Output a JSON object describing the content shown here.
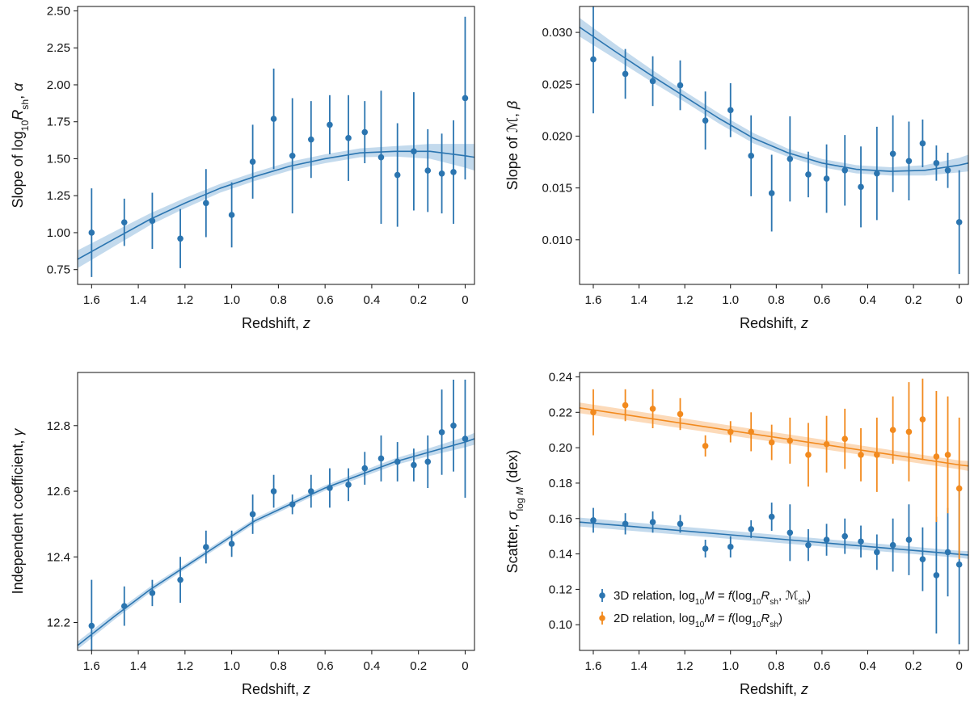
{
  "colors": {
    "blue": "#2b75b0",
    "blue_band": "#b9d3ea",
    "orange": "#f28a1e",
    "orange_band": "#fbd3ad",
    "axis": "#111111"
  },
  "chart_data": [
    {
      "type": "scatter",
      "panel": "top-left",
      "xlabel": "Redshift, z",
      "ylabel": "Slope of log10Rsh, α",
      "xlim": [
        1.66,
        -0.04
      ],
      "ylim": [
        0.65,
        2.53
      ],
      "xticks": [
        1.6,
        1.4,
        1.2,
        1.0,
        0.8,
        0.6,
        0.4,
        0.2,
        0
      ],
      "xtick_labels": [
        "1.6",
        "1.4",
        "1.2",
        "1.0",
        "0.8",
        "0.6",
        "0.4",
        "0.2",
        "0"
      ],
      "yticks": [
        0.75,
        1.0,
        1.25,
        1.5,
        1.75,
        2.0,
        2.25,
        2.5
      ],
      "ytick_labels": [
        "0.75",
        "1.00",
        "1.25",
        "1.50",
        "1.75",
        "2.00",
        "2.25",
        "2.50"
      ],
      "series": [
        {
          "color": "blue",
          "x": [
            1.6,
            1.46,
            1.34,
            1.22,
            1.11,
            1.0,
            0.91,
            0.82,
            0.74,
            0.66,
            0.58,
            0.5,
            0.43,
            0.36,
            0.29,
            0.22,
            0.16,
            0.1,
            0.05,
            0.0
          ],
          "y": [
            1.0,
            1.07,
            1.08,
            0.96,
            1.2,
            1.12,
            1.48,
            1.77,
            1.52,
            1.63,
            1.73,
            1.64,
            1.68,
            1.51,
            1.39,
            1.55,
            1.42,
            1.4,
            1.41,
            1.91
          ],
          "yerr": [
            0.3,
            0.16,
            0.19,
            0.2,
            0.23,
            0.22,
            0.25,
            0.34,
            0.39,
            0.26,
            0.2,
            0.29,
            0.21,
            0.45,
            0.35,
            0.4,
            0.28,
            0.27,
            0.35,
            0.55
          ],
          "fit_x": [
            1.66,
            1.5,
            1.35,
            1.2,
            1.05,
            0.9,
            0.75,
            0.6,
            0.45,
            0.3,
            0.15,
            0.0,
            -0.04
          ],
          "fit_y": [
            0.82,
            0.96,
            1.09,
            1.2,
            1.3,
            1.38,
            1.45,
            1.5,
            1.54,
            1.55,
            1.55,
            1.52,
            1.51
          ],
          "band_halfwidth": [
            0.06,
            0.05,
            0.04,
            0.035,
            0.03,
            0.03,
            0.03,
            0.03,
            0.03,
            0.035,
            0.05,
            0.08,
            0.09
          ]
        }
      ]
    },
    {
      "type": "scatter",
      "panel": "top-right",
      "xlabel": "Redshift, z",
      "ylabel": "Slope of ℳ, β",
      "xlim": [
        1.66,
        -0.04
      ],
      "ylim": [
        0.0057,
        0.0325
      ],
      "xticks": [
        1.6,
        1.4,
        1.2,
        1.0,
        0.8,
        0.6,
        0.4,
        0.2,
        0
      ],
      "xtick_labels": [
        "1.6",
        "1.4",
        "1.2",
        "1.0",
        "0.8",
        "0.6",
        "0.4",
        "0.2",
        "0"
      ],
      "yticks": [
        0.01,
        0.015,
        0.02,
        0.025,
        0.03
      ],
      "ytick_labels": [
        "0.010",
        "0.015",
        "0.020",
        "0.025",
        "0.030"
      ],
      "series": [
        {
          "color": "blue",
          "x": [
            1.6,
            1.46,
            1.34,
            1.22,
            1.11,
            1.0,
            0.91,
            0.82,
            0.74,
            0.66,
            0.58,
            0.5,
            0.43,
            0.36,
            0.29,
            0.22,
            0.16,
            0.1,
            0.05,
            0.0
          ],
          "y": [
            0.0274,
            0.026,
            0.0253,
            0.0249,
            0.0215,
            0.0225,
            0.0181,
            0.0145,
            0.0178,
            0.0163,
            0.0159,
            0.0167,
            0.0151,
            0.0164,
            0.0183,
            0.0176,
            0.0193,
            0.0174,
            0.0167,
            0.0117
          ],
          "yerr": [
            0.0052,
            0.0024,
            0.0024,
            0.0024,
            0.0028,
            0.0026,
            0.0039,
            0.0037,
            0.0041,
            0.0022,
            0.0033,
            0.0034,
            0.0039,
            0.0045,
            0.0037,
            0.0038,
            0.0023,
            0.0017,
            0.0017,
            0.005
          ],
          "fit_x": [
            1.66,
            1.5,
            1.35,
            1.2,
            1.05,
            0.9,
            0.75,
            0.6,
            0.45,
            0.3,
            0.15,
            0.0,
            -0.04
          ],
          "fit_y": [
            0.0305,
            0.0281,
            0.0259,
            0.0238,
            0.0217,
            0.0198,
            0.0184,
            0.0174,
            0.0168,
            0.0166,
            0.0167,
            0.0172,
            0.0174
          ],
          "band_halfwidth": [
            0.0009,
            0.0007,
            0.0006,
            0.0005,
            0.0005,
            0.0005,
            0.0004,
            0.0004,
            0.0004,
            0.0004,
            0.0005,
            0.0007,
            0.0008
          ]
        }
      ]
    },
    {
      "type": "scatter",
      "panel": "bottom-left",
      "xlabel": "Redshift, z",
      "ylabel": "Independent coefficient, γ",
      "xlim": [
        1.66,
        -0.04
      ],
      "ylim": [
        12.115,
        12.962
      ],
      "xticks": [
        1.6,
        1.4,
        1.2,
        1.0,
        0.8,
        0.6,
        0.4,
        0.2,
        0
      ],
      "xtick_labels": [
        "1.6",
        "1.4",
        "1.2",
        "1.0",
        "0.8",
        "0.6",
        "0.4",
        "0.2",
        "0"
      ],
      "yticks": [
        12.2,
        12.4,
        12.6,
        12.8
      ],
      "ytick_labels": [
        "12.2",
        "12.4",
        "12.6",
        "12.8"
      ],
      "series": [
        {
          "color": "blue",
          "x": [
            1.6,
            1.46,
            1.34,
            1.22,
            1.11,
            1.0,
            0.91,
            0.82,
            0.74,
            0.66,
            0.58,
            0.5,
            0.43,
            0.36,
            0.29,
            0.22,
            0.16,
            0.1,
            0.05,
            0.0
          ],
          "y": [
            12.19,
            12.25,
            12.29,
            12.33,
            12.43,
            12.44,
            12.53,
            12.6,
            12.56,
            12.6,
            12.61,
            12.62,
            12.67,
            12.7,
            12.69,
            12.68,
            12.69,
            12.78,
            12.8,
            12.76
          ],
          "yerr": [
            0.14,
            0.06,
            0.04,
            0.07,
            0.05,
            0.04,
            0.06,
            0.05,
            0.03,
            0.05,
            0.06,
            0.05,
            0.05,
            0.07,
            0.06,
            0.05,
            0.08,
            0.13,
            0.14,
            0.18
          ],
          "fit_x": [
            1.66,
            1.5,
            1.35,
            1.2,
            1.05,
            0.9,
            0.75,
            0.6,
            0.45,
            0.3,
            0.15,
            0.0,
            -0.04
          ],
          "fit_y": [
            12.13,
            12.22,
            12.3,
            12.37,
            12.44,
            12.51,
            12.56,
            12.61,
            12.65,
            12.69,
            12.72,
            12.75,
            12.76
          ],
          "band_halfwidth": [
            0.012,
            0.01,
            0.009,
            0.008,
            0.008,
            0.008,
            0.008,
            0.008,
            0.009,
            0.01,
            0.012,
            0.016,
            0.018
          ]
        }
      ]
    },
    {
      "type": "scatter",
      "panel": "bottom-right",
      "xlabel": "Redshift, z",
      "ylabel": "Scatter, σlog M (dex)",
      "xlim": [
        1.66,
        -0.04
      ],
      "ylim": [
        0.0855,
        0.2425
      ],
      "xticks": [
        1.6,
        1.4,
        1.2,
        1.0,
        0.8,
        0.6,
        0.4,
        0.2,
        0
      ],
      "xtick_labels": [
        "1.6",
        "1.4",
        "1.2",
        "1.0",
        "0.8",
        "0.6",
        "0.4",
        "0.2",
        "0"
      ],
      "yticks": [
        0.1,
        0.12,
        0.14,
        0.16,
        0.18,
        0.2,
        0.22,
        0.24
      ],
      "ytick_labels": [
        "0.10",
        "0.12",
        "0.14",
        "0.16",
        "0.18",
        "0.20",
        "0.22",
        "0.24"
      ],
      "legend": {
        "placement": "lower-left",
        "entries": [
          {
            "color": "blue",
            "text": "3D relation, log10M = f(log10Rsh, ℳsh)"
          },
          {
            "color": "orange",
            "text": "2D relation, log10M = f(log10Rsh)"
          }
        ]
      },
      "series": [
        {
          "color": "blue",
          "x": [
            1.6,
            1.46,
            1.34,
            1.22,
            1.11,
            1.0,
            0.91,
            0.82,
            0.74,
            0.66,
            0.58,
            0.5,
            0.43,
            0.36,
            0.29,
            0.22,
            0.16,
            0.1,
            0.05,
            0.0
          ],
          "y": [
            0.159,
            0.157,
            0.158,
            0.157,
            0.143,
            0.144,
            0.154,
            0.161,
            0.152,
            0.145,
            0.148,
            0.15,
            0.147,
            0.141,
            0.145,
            0.148,
            0.137,
            0.128,
            0.141,
            0.134
          ],
          "yerr": [
            0.007,
            0.006,
            0.006,
            0.005,
            0.005,
            0.006,
            0.005,
            0.008,
            0.016,
            0.009,
            0.009,
            0.01,
            0.009,
            0.01,
            0.015,
            0.02,
            0.018,
            0.033,
            0.025,
            0.045
          ],
          "fit_x": [
            1.66,
            0.0,
            -0.04
          ],
          "fit_y": [
            0.158,
            0.1398,
            0.1394
          ],
          "band_halfwidth": [
            0.0025,
            0.002,
            0.0022
          ]
        },
        {
          "color": "orange",
          "x": [
            1.6,
            1.46,
            1.34,
            1.22,
            1.11,
            1.0,
            0.91,
            0.82,
            0.74,
            0.66,
            0.58,
            0.5,
            0.43,
            0.36,
            0.29,
            0.22,
            0.16,
            0.1,
            0.05,
            0.0
          ],
          "y": [
            0.22,
            0.224,
            0.222,
            0.219,
            0.201,
            0.209,
            0.209,
            0.203,
            0.204,
            0.196,
            0.202,
            0.205,
            0.196,
            0.196,
            0.21,
            0.209,
            0.216,
            0.195,
            0.196,
            0.177
          ],
          "yerr": [
            0.013,
            0.009,
            0.011,
            0.009,
            0.006,
            0.006,
            0.011,
            0.01,
            0.013,
            0.018,
            0.016,
            0.017,
            0.015,
            0.021,
            0.019,
            0.028,
            0.023,
            0.037,
            0.033,
            0.04
          ],
          "fit_x": [
            1.66,
            0.0,
            -0.04
          ],
          "fit_y": [
            0.2225,
            0.1903,
            0.1897
          ],
          "band_halfwidth": [
            0.003,
            0.0025,
            0.0028
          ]
        }
      ]
    }
  ]
}
